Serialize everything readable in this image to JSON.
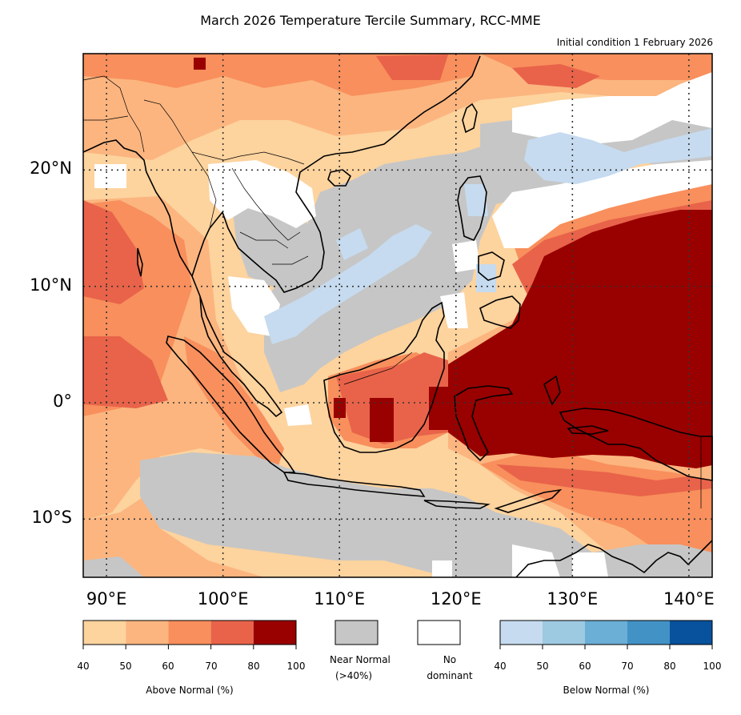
{
  "title": "March 2026 Temperature Tercile Summary, RCC-MME",
  "subtitle": "Initial condition 1 February 2026",
  "map": {
    "lon_range": [
      88,
      142
    ],
    "lat_range": [
      -15,
      30
    ],
    "lat_labels": [
      "20°N",
      "10°N",
      "0°",
      "10°S"
    ],
    "lat_values": [
      20,
      10,
      0,
      -10
    ],
    "lon_labels": [
      "90°E",
      "100°E",
      "110°E",
      "120°E",
      "130°E",
      "140°E"
    ],
    "lon_values": [
      90,
      100,
      110,
      120,
      130,
      140
    ],
    "gridlines": "dotted"
  },
  "colorbars": {
    "above": {
      "caption": "Above Normal (%)",
      "ticks": [
        "40",
        "50",
        "60",
        "70",
        "80",
        "100"
      ],
      "colors": [
        "#fdd39e",
        "#fcb57f",
        "#f88f5c",
        "#e8634a",
        "#990000"
      ]
    },
    "near": {
      "caption_line1": "Near Normal",
      "caption_line2": "(>40%)",
      "color": "#c6c6c6"
    },
    "nodom": {
      "caption_line1": "No",
      "caption_line2": "dominant",
      "color": "#ffffff"
    },
    "below": {
      "caption": "Below Normal (%)",
      "ticks": [
        "40",
        "50",
        "60",
        "70",
        "80",
        "100"
      ],
      "colors": [
        "#c6dbef",
        "#9ecae1",
        "#6baed6",
        "#4292c6",
        "#08519c"
      ]
    }
  },
  "colors": {
    "a1": "#fdd39e",
    "a2": "#fcb57f",
    "a3": "#f88f5c",
    "a4": "#e8634a",
    "a5": "#990000",
    "near": "#c6c6c6",
    "nodom": "#ffffff",
    "b1": "#c6dbef"
  }
}
